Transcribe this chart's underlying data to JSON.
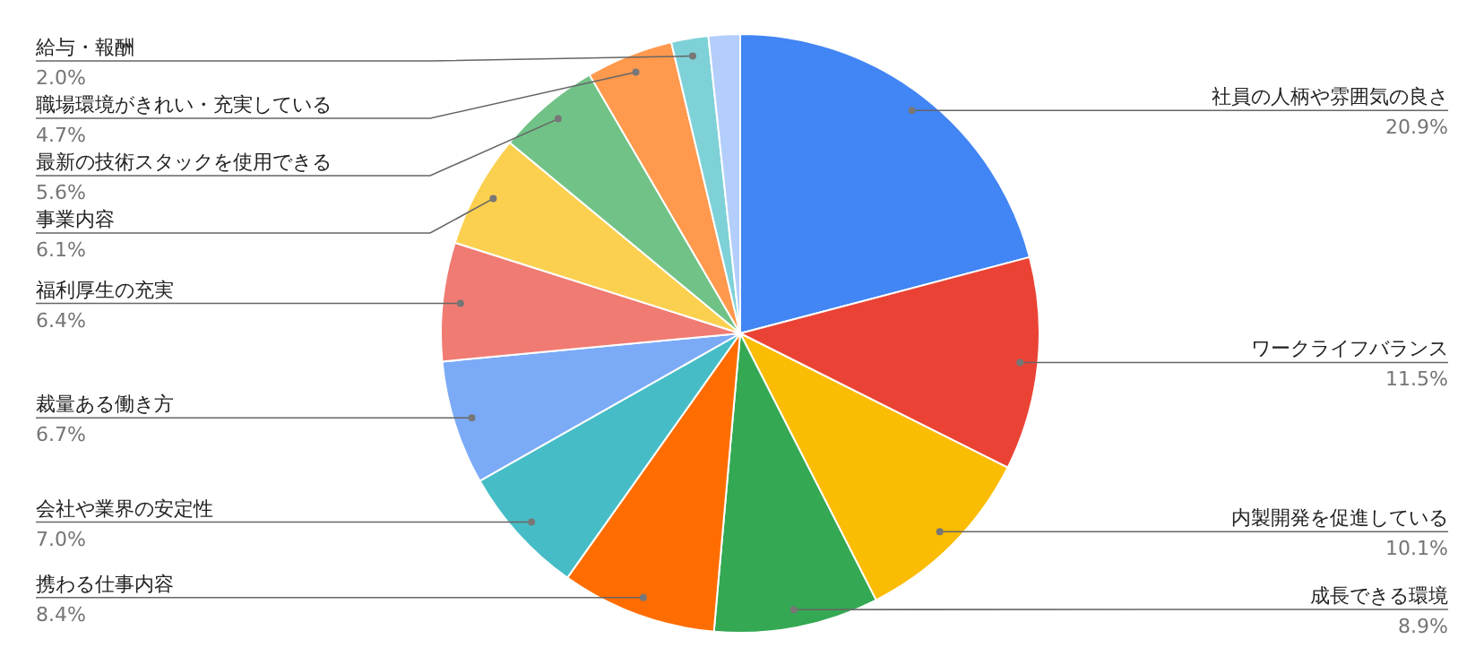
{
  "chart_data": {
    "type": "pie",
    "categories": [
      "社員の人柄や雰囲気の良さ",
      "ワークライフバランス",
      "内製開発を促進している",
      "成長できる環境",
      "携わる仕事内容",
      "会社や業界の安定性",
      "裁量ある働き方",
      "福利厚生の充実",
      "事業内容",
      "最新の技術スタックを使用できる",
      "職場環境がきれい・充実している",
      "給与・報酬",
      null
    ],
    "values": [
      20.9,
      11.5,
      10.1,
      8.9,
      8.4,
      7.0,
      6.7,
      6.4,
      6.1,
      5.6,
      4.7,
      2.0,
      1.7
    ],
    "value_labels": [
      "20.9%",
      "11.5%",
      "10.1%",
      "8.9%",
      "8.4%",
      "7.0%",
      "6.7%",
      "6.4%",
      "6.1%",
      "5.6%",
      "4.7%",
      "2.0%",
      null
    ],
    "colors": [
      "#4285f4",
      "#ea4335",
      "#fbbc04",
      "#34a853",
      "#ff6d01",
      "#46bdc6",
      "#7baaf7",
      "#f07b72",
      "#fcd04f",
      "#71c287",
      "#ff994d",
      "#7ed1d7",
      "#b3cefb"
    ]
  }
}
